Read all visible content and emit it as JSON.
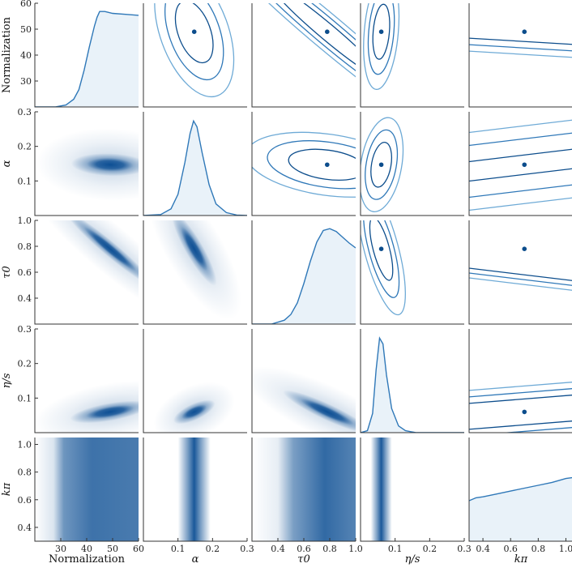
{
  "chart_data": {
    "type": "corner",
    "parameters": [
      {
        "key": "norm",
        "label": "Normalization",
        "range": [
          20,
          60
        ],
        "ticks_label": [
          "30",
          "40",
          "50",
          "60"
        ],
        "ticks": [
          30,
          40,
          50,
          60
        ]
      },
      {
        "key": "alpha",
        "label": "α",
        "range": [
          0,
          0.3
        ],
        "ticks_label": [
          "0.1",
          "0.2",
          "0.3"
        ],
        "ticks": [
          0.1,
          0.2,
          0.3
        ]
      },
      {
        "key": "tau0",
        "label": "τ0",
        "range": [
          0.2,
          1.0
        ],
        "ticks_label": [
          "0.4",
          "0.6",
          "0.8",
          "1.0"
        ],
        "ticks": [
          0.4,
          0.6,
          0.8,
          1.0
        ]
      },
      {
        "key": "etas",
        "label": "η/s",
        "range": [
          0,
          0.3
        ],
        "ticks_label": [
          "0.1",
          "0.2",
          "0.3"
        ],
        "ticks": [
          0.1,
          0.2,
          0.3
        ]
      },
      {
        "key": "kpi",
        "label": "kπ",
        "range": [
          0.3,
          1.05
        ],
        "ticks_label": [
          "0.4",
          "0.6",
          "0.8",
          "1.0"
        ],
        "ticks": [
          0.4,
          0.6,
          0.8,
          1.0
        ]
      }
    ],
    "row_tick_labels": {
      "norm": [
        "30",
        "40",
        "50",
        "60"
      ],
      "alpha": [
        "0.1",
        "0.2",
        "0.3"
      ],
      "tau0": [
        "0.4",
        "0.6",
        "0.8",
        "1.0"
      ],
      "etas": [
        "0.1",
        "0.2",
        "0.3"
      ],
      "kpi": [
        "0.4",
        "0.6",
        "0.8",
        "1.0"
      ]
    },
    "best_fit": {
      "norm": 49,
      "alpha": 0.147,
      "tau0": 0.78,
      "etas": 0.06,
      "kpi": 0.7
    },
    "marginals": {
      "norm": {
        "x": [
          20,
          28,
          32,
          35,
          37,
          39,
          41,
          43,
          44,
          45,
          47,
          50,
          55,
          60
        ],
        "y": [
          0.0,
          0.0,
          0.02,
          0.08,
          0.18,
          0.38,
          0.62,
          0.84,
          0.93,
          0.99,
          0.99,
          0.97,
          0.96,
          0.95
        ]
      },
      "alpha": {
        "x": [
          0.0,
          0.05,
          0.08,
          0.1,
          0.12,
          0.135,
          0.145,
          0.155,
          0.17,
          0.19,
          0.21,
          0.24,
          0.27,
          0.3
        ],
        "y": [
          0.0,
          0.01,
          0.07,
          0.22,
          0.55,
          0.85,
          0.98,
          0.92,
          0.65,
          0.32,
          0.12,
          0.03,
          0.005,
          0.0
        ]
      },
      "tau0": {
        "x": [
          0.2,
          0.35,
          0.45,
          0.5,
          0.55,
          0.6,
          0.65,
          0.7,
          0.75,
          0.8,
          0.85,
          0.9,
          0.95,
          1.0
        ],
        "y": [
          0.0,
          0.0,
          0.04,
          0.1,
          0.22,
          0.42,
          0.65,
          0.85,
          0.97,
          0.99,
          0.96,
          0.9,
          0.84,
          0.79
        ]
      },
      "etas": {
        "x": [
          0.0,
          0.02,
          0.035,
          0.045,
          0.055,
          0.065,
          0.075,
          0.09,
          0.11,
          0.13,
          0.16,
          0.2,
          0.3
        ],
        "y": [
          0.0,
          0.02,
          0.2,
          0.65,
          0.98,
          0.92,
          0.6,
          0.25,
          0.07,
          0.02,
          0.0,
          0.0,
          0.0
        ]
      },
      "kpi": {
        "x": [
          0.3,
          0.35,
          0.4,
          0.5,
          0.6,
          0.7,
          0.8,
          0.9,
          1.0,
          1.05
        ],
        "y": [
          0.42,
          0.45,
          0.46,
          0.49,
          0.52,
          0.55,
          0.58,
          0.61,
          0.65,
          0.66
        ]
      }
    },
    "contour_levels": [
      "1σ",
      "2σ",
      "3σ"
    ],
    "colors": {
      "dark": "#0c4d8c",
      "mid": "#2f78b8",
      "light": "#6eaad6",
      "fill": "#e9f2f9",
      "density": "#0d4f94"
    }
  }
}
